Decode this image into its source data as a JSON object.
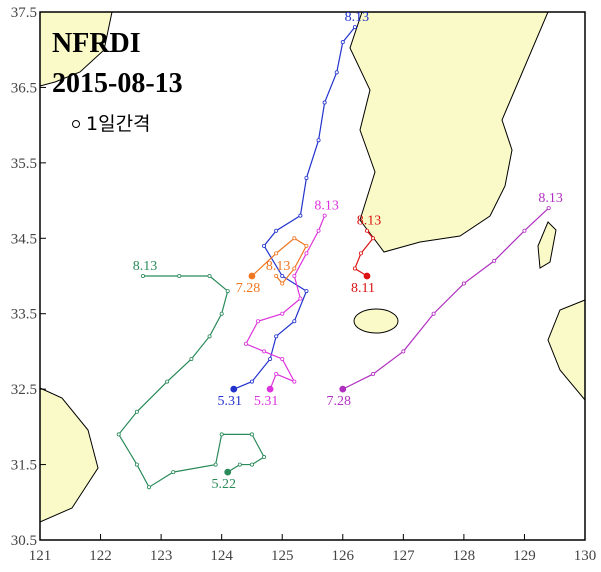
{
  "chart_data": {
    "type": "track-map",
    "title": "NFRDI",
    "subtitle": "2015-08-13",
    "legend_text": "1일간격",
    "xlim": [
      121,
      130
    ],
    "xticks": [
      121,
      122,
      123,
      124,
      125,
      126,
      127,
      128,
      129,
      130
    ],
    "ylim": [
      30.5,
      37.5
    ],
    "yticks": [
      30.5,
      31.5,
      32.5,
      33.5,
      34.5,
      35.5,
      36.5,
      37.5
    ],
    "tracks": [
      {
        "color": "#2233cc",
        "start_label": "5.31",
        "end_label": "8.13",
        "x": [
          124.2,
          124.5,
          124.8,
          124.9,
          125.2,
          125.4,
          125.0,
          124.7,
          124.9,
          125.3,
          125.4,
          125.6,
          125.7,
          125.9,
          126.0,
          126.2
        ],
        "y": [
          32.5,
          32.6,
          32.9,
          33.2,
          33.4,
          33.8,
          34.0,
          34.4,
          34.6,
          34.8,
          35.3,
          35.8,
          36.3,
          36.7,
          37.1,
          37.3
        ]
      },
      {
        "color": "#dd33dd",
        "start_label": "5.31",
        "end_label": "8.13",
        "x": [
          124.8,
          124.9,
          125.2,
          125.0,
          124.7,
          124.4,
          124.6,
          125.0,
          125.3,
          125.2,
          125.4,
          125.6,
          125.7
        ],
        "y": [
          32.5,
          32.7,
          32.6,
          32.9,
          33.0,
          33.1,
          33.4,
          33.5,
          33.7,
          34.0,
          34.3,
          34.6,
          34.8
        ]
      },
      {
        "color": "#ee7722",
        "start_label": "7.28",
        "end_label": "8.13",
        "x": [
          124.5,
          124.9,
          125.2,
          125.4,
          125.2,
          125.0,
          124.9
        ],
        "y": [
          34.0,
          34.3,
          34.5,
          34.4,
          34.1,
          33.9,
          34.0
        ]
      },
      {
        "color": "#b030c0",
        "start_label": "7.28",
        "end_label": "8.13",
        "x": [
          126.0,
          126.5,
          127.0,
          127.5,
          128.0,
          128.5,
          129.0,
          129.4
        ],
        "y": [
          32.5,
          32.7,
          33.0,
          33.5,
          33.9,
          34.2,
          34.6,
          34.9
        ]
      },
      {
        "color": "#dd1111",
        "start_label": "8.11",
        "end_label": "8.13",
        "x": [
          126.4,
          126.2,
          126.3,
          126.5,
          126.4
        ],
        "y": [
          34.0,
          34.1,
          34.3,
          34.5,
          34.6
        ]
      },
      {
        "color": "#2a8a5a",
        "start_label": "5.22",
        "end_label": "8.13",
        "x": [
          124.1,
          124.3,
          124.5,
          124.7,
          124.5,
          124.0,
          123.9,
          123.2,
          122.8,
          122.6,
          122.3,
          122.6,
          123.1,
          123.5,
          123.8,
          124.0,
          124.1,
          123.8,
          123.3,
          122.7
        ],
        "y": [
          31.4,
          31.5,
          31.5,
          31.6,
          31.9,
          31.9,
          31.5,
          31.4,
          31.2,
          31.5,
          31.9,
          32.2,
          32.6,
          32.9,
          33.2,
          33.5,
          33.8,
          34.0,
          34.0,
          34.0
        ]
      }
    ]
  }
}
